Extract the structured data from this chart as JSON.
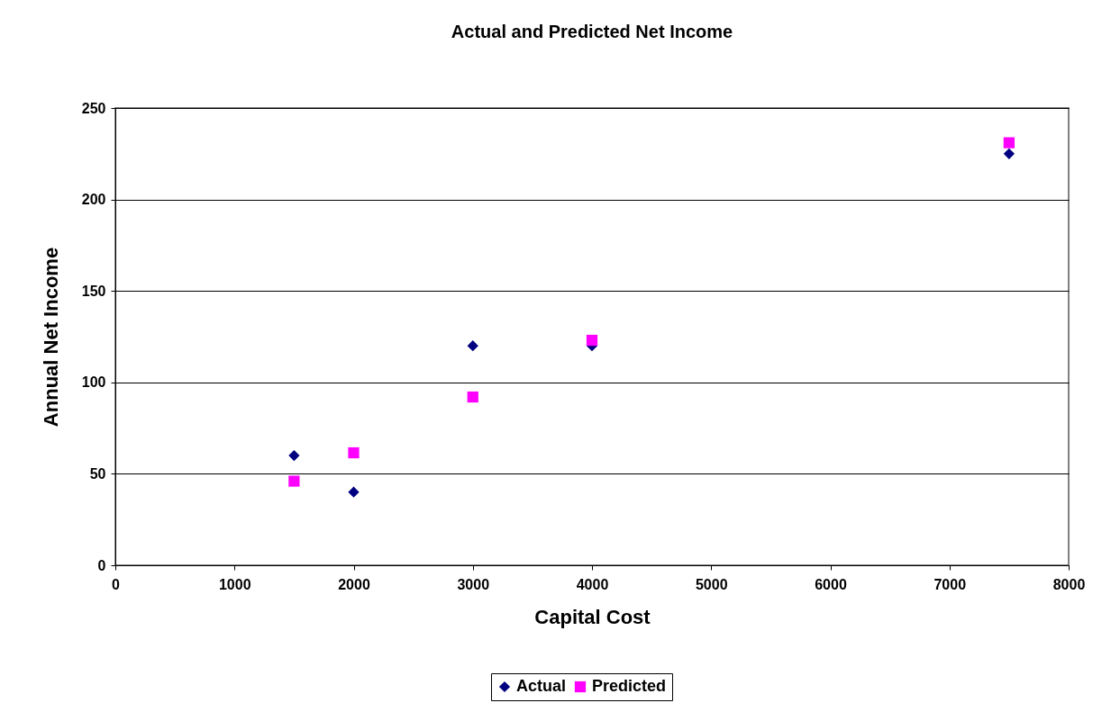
{
  "chart_data": {
    "type": "scatter",
    "title": "Actual and Predicted Net Income",
    "xlabel": "Capital Cost",
    "ylabel": "Annual Net Income",
    "x": [
      1500,
      2000,
      3000,
      4000,
      7500
    ],
    "series": [
      {
        "name": "Actual",
        "color": "#000080",
        "marker": "diamond",
        "values": [
          60,
          40,
          120,
          120,
          225
        ]
      },
      {
        "name": "Predicted",
        "color": "#ff00ff",
        "marker": "square",
        "values": [
          46,
          61.5,
          92,
          123,
          231
        ]
      }
    ],
    "xlim": [
      0,
      8000
    ],
    "xticks": [
      0,
      1000,
      2000,
      3000,
      4000,
      5000,
      6000,
      7000,
      8000
    ],
    "ylim": [
      0,
      250
    ],
    "yticks": [
      0,
      50,
      100,
      150,
      200,
      250
    ],
    "grid": "y",
    "legend": "bottom"
  }
}
